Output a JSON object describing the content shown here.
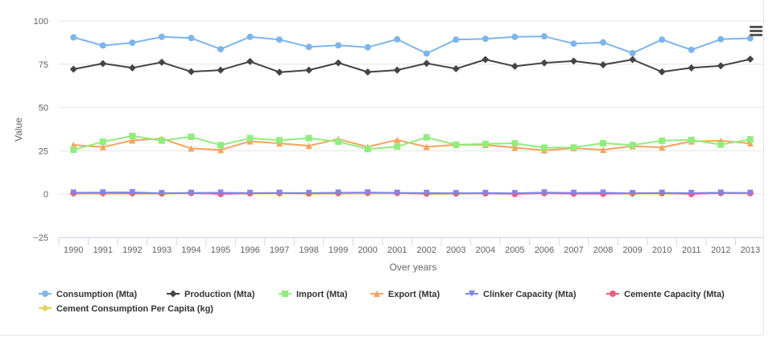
{
  "chart_data": {
    "type": "line",
    "title": "",
    "xlabel": "Over years",
    "ylabel": "Value",
    "ylim": [
      -25,
      100
    ],
    "yticks": [
      -25,
      0,
      25,
      50,
      75,
      100
    ],
    "grid": true,
    "legend_position": "bottom",
    "categories": [
      "1990",
      "1991",
      "1992",
      "1993",
      "1994",
      "1995",
      "1996",
      "1997",
      "1998",
      "1999",
      "2000",
      "2001",
      "2002",
      "2003",
      "2004",
      "2005",
      "2006",
      "2007",
      "2008",
      "2009",
      "2010",
      "2011",
      "2012",
      "2013"
    ],
    "series": [
      {
        "name": "Consumption (Mta)",
        "color": "#7cb5ec",
        "marker": "circle",
        "values": [
          90.5,
          85.8,
          87.4,
          90.8,
          90.1,
          83.7,
          90.8,
          89.2,
          85,
          85.9,
          84.8,
          89.4,
          81.2,
          89.2,
          89.7,
          90.8,
          91.1,
          86.9,
          87.6,
          81.4,
          89.2,
          83.3,
          89.4,
          90
        ]
      },
      {
        "name": "Production (Mta)",
        "color": "#434348",
        "marker": "diamond",
        "values": [
          72.1,
          75.4,
          72.9,
          76.1,
          70.7,
          71.6,
          76.6,
          70.4,
          71.6,
          75.8,
          70.5,
          71.6,
          75.5,
          72.4,
          77.7,
          73.8,
          75.8,
          76.8,
          74.7,
          77.7,
          70.6,
          72.9,
          74.1,
          77.9
        ]
      },
      {
        "name": "Import (Mta)",
        "color": "#90ed7d",
        "marker": "square",
        "values": [
          25.6,
          30.2,
          33.6,
          30.9,
          33.1,
          28.3,
          32.3,
          31.1,
          32.3,
          30.3,
          26,
          27.4,
          32.8,
          28.5,
          29,
          29.3,
          26.8,
          26.9,
          29.4,
          28.3,
          30.8,
          31.3,
          28.6,
          31.6
        ]
      },
      {
        "name": "Export (Mta)",
        "color": "#f7a35c",
        "marker": "triangle",
        "values": [
          28.4,
          27.2,
          31,
          32,
          26.4,
          25.5,
          30.5,
          29.3,
          27.9,
          31.8,
          27.3,
          31.3,
          27.3,
          28.5,
          28.4,
          26.8,
          25.3,
          26.5,
          25.6,
          27.7,
          27,
          30.5,
          30.8,
          29.3
        ]
      },
      {
        "name": "Clinker Capacity (Mta)",
        "color": "#8085e9",
        "marker": "triangle-down",
        "values": [
          0.8,
          0.9,
          1,
          0.5,
          0.7,
          0.8,
          0.6,
          0.7,
          0.6,
          0.8,
          0.9,
          0.7,
          0.6,
          0.5,
          0.6,
          0.5,
          0.9,
          0.7,
          0.8,
          0.5,
          0.7,
          0.6,
          0.8,
          0.7
        ]
      },
      {
        "name": "Cemente Capacity (Mta)",
        "color": "#f15c80",
        "marker": "circle",
        "values": [
          0.6,
          0.7,
          0.6,
          0.4,
          0.7,
          0.1,
          0.5,
          0.6,
          0.4,
          0.7,
          0.8,
          0.7,
          0.3,
          0.4,
          0.5,
          0.1,
          0.6,
          0.3,
          0.2,
          0.5,
          0.6,
          0.1,
          0.7,
          0.6
        ]
      },
      {
        "name": "Cement Consumption Per Capita (kg)",
        "color": "#e4d354",
        "marker": "diamond",
        "values": [
          0.2,
          0.3,
          0.2,
          0.3,
          0.5,
          0.4,
          0.3,
          0.4,
          0.3,
          0.2,
          0.4,
          0.5,
          0.3,
          0.2,
          0.4,
          0.3,
          0.4,
          0.3,
          0.5,
          0.2,
          0.3,
          0.4,
          0.5,
          0.3
        ]
      }
    ]
  },
  "icons": {
    "menu": "hamburger-menu-icon"
  }
}
